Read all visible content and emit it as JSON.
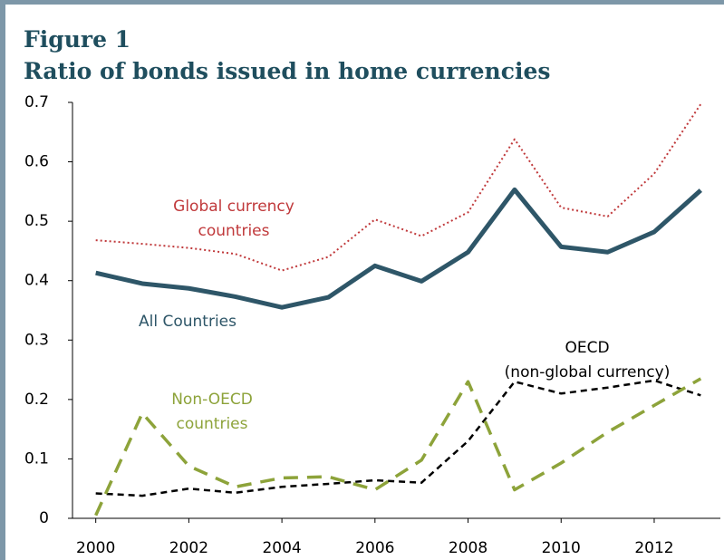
{
  "chart_data": {
    "type": "line",
    "title": "Figure 1",
    "subtitle": "Ratio of bonds issued in home currencies",
    "x": [
      2000,
      2001,
      2002,
      2003,
      2004,
      2005,
      2006,
      2007,
      2008,
      2009,
      2010,
      2011,
      2012,
      2013
    ],
    "xlim": [
      1999.5,
      2013.5
    ],
    "xticks": [
      2000,
      2002,
      2004,
      2006,
      2008,
      2010,
      2012
    ],
    "ylim": [
      0,
      0.7
    ],
    "yticks": [
      0,
      0.1,
      0.2,
      0.3,
      0.4,
      0.5,
      0.6,
      0.7
    ],
    "series": [
      {
        "label": [
          "Global currency",
          "countries"
        ],
        "color": "#c0393b",
        "style": "dotted",
        "values": [
          0.468,
          0.462,
          0.455,
          0.445,
          0.417,
          0.44,
          0.503,
          0.475,
          0.515,
          0.638,
          0.523,
          0.508,
          0.58,
          0.697
        ]
      },
      {
        "label": [
          "All Countries"
        ],
        "color": "#2e5668",
        "style": "solid",
        "values": [
          0.413,
          0.395,
          0.387,
          0.373,
          0.355,
          0.372,
          0.425,
          0.399,
          0.448,
          0.553,
          0.457,
          0.448,
          0.482,
          0.552
        ]
      },
      {
        "label": [
          "OECD",
          "(non-global currency)"
        ],
        "color": "#000000",
        "style": "dashed",
        "values": [
          0.042,
          0.038,
          0.05,
          0.043,
          0.053,
          0.058,
          0.064,
          0.06,
          0.13,
          0.23,
          0.21,
          0.22,
          0.232,
          0.207
        ]
      },
      {
        "label": [
          "Non-OECD",
          "countries"
        ],
        "color": "#8da33a",
        "style": "longdash",
        "values": [
          0.005,
          0.177,
          0.088,
          0.053,
          0.068,
          0.07,
          0.048,
          0.098,
          0.23,
          0.048,
          0.093,
          0.145,
          0.19,
          0.235
        ]
      }
    ]
  }
}
